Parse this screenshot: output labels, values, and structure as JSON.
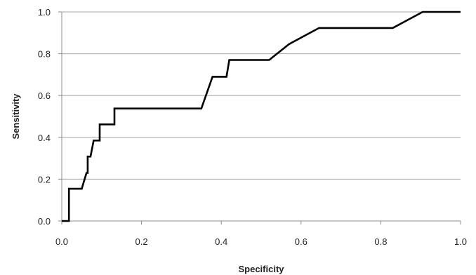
{
  "chart_data": {
    "type": "line",
    "title": "",
    "xlabel": "Specificity",
    "ylabel": "Sensitivity",
    "xlim": [
      0.0,
      1.0
    ],
    "ylim": [
      0.0,
      1.0
    ],
    "x_ticks": [
      "0.0",
      "0.2",
      "0.4",
      "0.6",
      "0.8",
      "1.0"
    ],
    "y_ticks": [
      "0.0",
      "0.2",
      "0.4",
      "0.6",
      "0.8",
      "1.0"
    ],
    "grid": true,
    "legend": "none",
    "series": [
      {
        "color": "#000000",
        "points": [
          [
            0.0,
            0.0
          ],
          [
            0.018,
            0.0
          ],
          [
            0.018,
            0.154
          ],
          [
            0.05,
            0.154
          ],
          [
            0.062,
            0.23
          ],
          [
            0.065,
            0.23
          ],
          [
            0.065,
            0.308
          ],
          [
            0.072,
            0.308
          ],
          [
            0.08,
            0.385
          ],
          [
            0.095,
            0.385
          ],
          [
            0.095,
            0.462
          ],
          [
            0.132,
            0.462
          ],
          [
            0.132,
            0.538
          ],
          [
            0.35,
            0.538
          ],
          [
            0.378,
            0.69
          ],
          [
            0.413,
            0.69
          ],
          [
            0.42,
            0.77
          ],
          [
            0.52,
            0.77
          ],
          [
            0.57,
            0.846
          ],
          [
            0.645,
            0.923
          ],
          [
            0.83,
            0.923
          ],
          [
            0.905,
            1.0
          ],
          [
            1.0,
            1.0
          ]
        ]
      }
    ]
  }
}
